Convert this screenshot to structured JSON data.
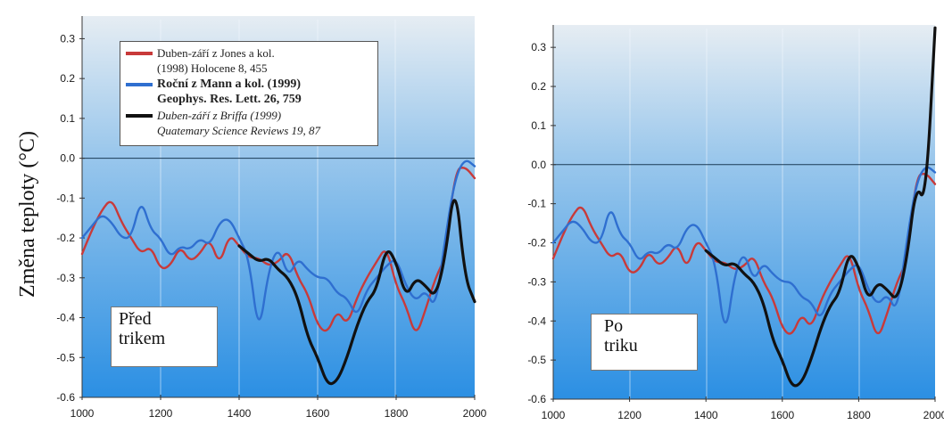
{
  "y_axis_label": "Změna teploty (°C)",
  "colors": {
    "red": "#c83a3a",
    "blue": "#2f6fd0",
    "black": "#111111",
    "bg_top": "#dde6ee",
    "bg_bottom": "#2a8fe0"
  },
  "legend": {
    "items": [
      {
        "line1": "Duben-září z Jones a kol.",
        "line2": "(1998) Holocene 8, 455",
        "color": "#c83a3a",
        "style": "normal"
      },
      {
        "line1": "Roční z Mann a kol. (1999)",
        "line2": "Geophys. Res. Lett. 26, 759",
        "color": "#2f6fd0",
        "style": "bold"
      },
      {
        "line1": "Duben-září z Briffa (1999)",
        "line2": "Quatemary Science Reviews 19, 87",
        "color": "#111111",
        "style": "italic"
      }
    ]
  },
  "left_panel": {
    "annotation": [
      "Před",
      "trikem"
    ]
  },
  "right_panel": {
    "annotation": [
      "Po",
      "triku"
    ]
  },
  "chart_data": [
    {
      "type": "line",
      "annotation": "Před trikem",
      "xlim": [
        1000,
        2000
      ],
      "ylim": [
        -0.6,
        0.35
      ],
      "xticks": [
        "1000",
        "1200",
        "1400",
        "1600",
        "1800",
        "2000"
      ],
      "yticks": [
        "0.3",
        "0.2",
        "0.1",
        "0.0",
        "-0.1",
        "-0.2",
        "-0.3",
        "-0.4",
        "-0.5",
        "-0.6"
      ],
      "series": [
        {
          "color": "#c83a3a",
          "x": [
            1000,
            1025,
            1050,
            1075,
            1100,
            1125,
            1150,
            1175,
            1200,
            1225,
            1250,
            1275,
            1300,
            1325,
            1350,
            1375,
            1400,
            1425,
            1450,
            1475,
            1500,
            1525,
            1550,
            1575,
            1600,
            1625,
            1650,
            1675,
            1700,
            1725,
            1750,
            1775,
            1800,
            1825,
            1850,
            1875,
            1900,
            1925,
            1950,
            1975,
            2000
          ],
          "y": [
            -0.24,
            -0.18,
            -0.13,
            -0.1,
            -0.16,
            -0.2,
            -0.24,
            -0.22,
            -0.28,
            -0.27,
            -0.22,
            -0.26,
            -0.24,
            -0.2,
            -0.27,
            -0.19,
            -0.22,
            -0.25,
            -0.25,
            -0.27,
            -0.26,
            -0.23,
            -0.3,
            -0.34,
            -0.42,
            -0.44,
            -0.38,
            -0.42,
            -0.35,
            -0.3,
            -0.26,
            -0.22,
            -0.32,
            -0.37,
            -0.45,
            -0.38,
            -0.3,
            -0.25,
            -0.03,
            -0.02,
            -0.05
          ]
        },
        {
          "color": "#2f6fd0",
          "x": [
            1000,
            1025,
            1050,
            1075,
            1100,
            1125,
            1150,
            1175,
            1200,
            1225,
            1250,
            1275,
            1300,
            1325,
            1350,
            1375,
            1400,
            1425,
            1450,
            1475,
            1500,
            1525,
            1550,
            1575,
            1600,
            1625,
            1650,
            1675,
            1700,
            1725,
            1750,
            1775,
            1800,
            1825,
            1850,
            1875,
            1900,
            1925,
            1950,
            1975,
            2000
          ],
          "y": [
            -0.2,
            -0.17,
            -0.14,
            -0.16,
            -0.2,
            -0.2,
            -0.1,
            -0.18,
            -0.2,
            -0.25,
            -0.22,
            -0.23,
            -0.2,
            -0.22,
            -0.16,
            -0.15,
            -0.2,
            -0.25,
            -0.45,
            -0.28,
            -0.22,
            -0.3,
            -0.25,
            -0.28,
            -0.3,
            -0.3,
            -0.34,
            -0.35,
            -0.4,
            -0.33,
            -0.3,
            -0.27,
            -0.25,
            -0.32,
            -0.36,
            -0.33,
            -0.38,
            -0.2,
            -0.05,
            0.0,
            -0.02
          ]
        },
        {
          "color": "#111111",
          "x": [
            1400,
            1425,
            1450,
            1475,
            1500,
            1525,
            1550,
            1575,
            1600,
            1625,
            1650,
            1675,
            1700,
            1725,
            1750,
            1775,
            1800,
            1825,
            1850,
            1875,
            1900,
            1925,
            1950,
            1975,
            2000
          ],
          "y": [
            -0.22,
            -0.24,
            -0.26,
            -0.25,
            -0.28,
            -0.3,
            -0.35,
            -0.45,
            -0.5,
            -0.57,
            -0.56,
            -0.5,
            -0.42,
            -0.36,
            -0.33,
            -0.22,
            -0.26,
            -0.35,
            -0.3,
            -0.32,
            -0.35,
            -0.25,
            -0.05,
            -0.3,
            -0.36
          ]
        }
      ]
    },
    {
      "type": "line",
      "annotation": "Po triku",
      "xlim": [
        1000,
        2000
      ],
      "ylim": [
        -0.6,
        0.35
      ],
      "xticks": [
        "1000",
        "1200",
        "1400",
        "1600",
        "1800",
        "2000"
      ],
      "yticks": [
        "0.3",
        "0.2",
        "0.1",
        "0.0",
        "-0.1",
        "-0.2",
        "-0.3",
        "-0.4",
        "-0.5",
        "-0.6"
      ],
      "series": [
        {
          "color": "#c83a3a",
          "x": [
            1000,
            1025,
            1050,
            1075,
            1100,
            1125,
            1150,
            1175,
            1200,
            1225,
            1250,
            1275,
            1300,
            1325,
            1350,
            1375,
            1400,
            1425,
            1450,
            1475,
            1500,
            1525,
            1550,
            1575,
            1600,
            1625,
            1650,
            1675,
            1700,
            1725,
            1750,
            1775,
            1800,
            1825,
            1850,
            1875,
            1900,
            1925,
            1950,
            1975,
            2000
          ],
          "y": [
            -0.24,
            -0.18,
            -0.13,
            -0.1,
            -0.16,
            -0.2,
            -0.24,
            -0.22,
            -0.28,
            -0.27,
            -0.22,
            -0.26,
            -0.24,
            -0.2,
            -0.27,
            -0.19,
            -0.22,
            -0.25,
            -0.25,
            -0.27,
            -0.26,
            -0.23,
            -0.3,
            -0.34,
            -0.42,
            -0.44,
            -0.38,
            -0.42,
            -0.35,
            -0.3,
            -0.26,
            -0.22,
            -0.32,
            -0.37,
            -0.45,
            -0.38,
            -0.3,
            -0.25,
            -0.03,
            -0.02,
            -0.05
          ]
        },
        {
          "color": "#2f6fd0",
          "x": [
            1000,
            1025,
            1050,
            1075,
            1100,
            1125,
            1150,
            1175,
            1200,
            1225,
            1250,
            1275,
            1300,
            1325,
            1350,
            1375,
            1400,
            1425,
            1450,
            1475,
            1500,
            1525,
            1550,
            1575,
            1600,
            1625,
            1650,
            1675,
            1700,
            1725,
            1750,
            1775,
            1800,
            1825,
            1850,
            1875,
            1900,
            1925,
            1950,
            1975,
            2000
          ],
          "y": [
            -0.2,
            -0.17,
            -0.14,
            -0.16,
            -0.2,
            -0.2,
            -0.1,
            -0.18,
            -0.2,
            -0.25,
            -0.22,
            -0.23,
            -0.2,
            -0.22,
            -0.16,
            -0.15,
            -0.2,
            -0.25,
            -0.45,
            -0.28,
            -0.22,
            -0.3,
            -0.25,
            -0.28,
            -0.3,
            -0.3,
            -0.34,
            -0.35,
            -0.4,
            -0.33,
            -0.3,
            -0.27,
            -0.25,
            -0.32,
            -0.36,
            -0.33,
            -0.38,
            -0.2,
            -0.05,
            0.0,
            -0.02
          ]
        },
        {
          "color": "#111111",
          "x": [
            1400,
            1425,
            1450,
            1475,
            1500,
            1525,
            1550,
            1575,
            1600,
            1625,
            1650,
            1675,
            1700,
            1725,
            1750,
            1775,
            1800,
            1825,
            1850,
            1875,
            1900,
            1925,
            1950,
            1975,
            2000
          ],
          "y": [
            -0.22,
            -0.24,
            -0.26,
            -0.25,
            -0.28,
            -0.3,
            -0.35,
            -0.45,
            -0.5,
            -0.57,
            -0.56,
            -0.5,
            -0.42,
            -0.36,
            -0.33,
            -0.22,
            -0.26,
            -0.35,
            -0.3,
            -0.32,
            -0.35,
            -0.25,
            -0.05,
            -0.1,
            0.35
          ]
        }
      ]
    }
  ]
}
